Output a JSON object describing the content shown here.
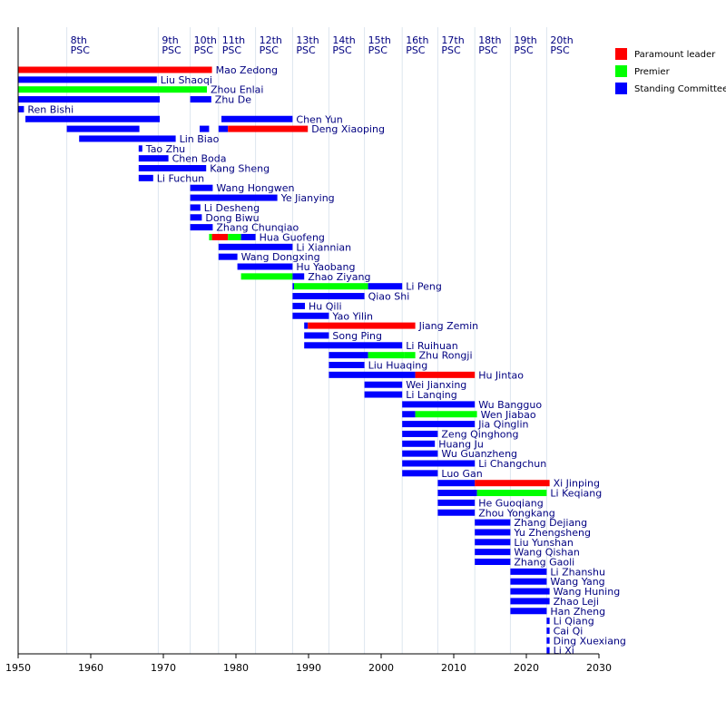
{
  "chart_data": {
    "type": "bar",
    "subtype": "timeline",
    "xlim": [
      1950,
      2030
    ],
    "x_ticks": [
      1950,
      1960,
      1970,
      1980,
      1990,
      2000,
      2010,
      2020,
      2030
    ],
    "grid": true,
    "legend_position": "top-right",
    "legend": [
      {
        "key": "paramount",
        "label": "Paramount leader",
        "color": "#ff0000"
      },
      {
        "key": "premier",
        "label": "Premier",
        "color": "#00ff00"
      },
      {
        "key": "standing",
        "label": "Standing Committee",
        "color": "#0000ff"
      }
    ],
    "congresses": [
      {
        "label": "8th",
        "sub": "PSC",
        "start": 1956.7
      },
      {
        "label": "9th",
        "sub": "PSC",
        "start": 1969.3
      },
      {
        "label": "10th",
        "sub": "PSC",
        "start": 1973.7
      },
      {
        "label": "11th",
        "sub": "PSC",
        "start": 1977.6
      },
      {
        "label": "12th",
        "sub": "PSC",
        "start": 1982.7
      },
      {
        "label": "13th",
        "sub": "PSC",
        "start": 1987.8
      },
      {
        "label": "14th",
        "sub": "PSC",
        "start": 1992.8
      },
      {
        "label": "15th",
        "sub": "PSC",
        "start": 1997.7
      },
      {
        "label": "16th",
        "sub": "PSC",
        "start": 2002.9
      },
      {
        "label": "17th",
        "sub": "PSC",
        "start": 2007.8
      },
      {
        "label": "18th",
        "sub": "PSC",
        "start": 2012.9
      },
      {
        "label": "19th",
        "sub": "PSC",
        "start": 2017.8
      },
      {
        "label": "20th",
        "sub": "PSC",
        "start": 2022.8
      }
    ],
    "members": [
      {
        "name": "Mao Zedong",
        "segments": [
          [
            1950,
            1976.7,
            "paramount"
          ]
        ]
      },
      {
        "name": "Liu Shaoqi",
        "segments": [
          [
            1950,
            1969.1,
            "standing"
          ]
        ]
      },
      {
        "name": "Zhou Enlai",
        "segments": [
          [
            1950,
            1976.0,
            "premier"
          ]
        ]
      },
      {
        "name": "Zhu De",
        "segments": [
          [
            1950,
            1969.5,
            "standing"
          ],
          [
            1973.7,
            1976.6,
            "standing"
          ]
        ]
      },
      {
        "name": "Ren Bishi",
        "segments": [
          [
            1950,
            1950.8,
            "standing"
          ]
        ]
      },
      {
        "name": "Chen Yun",
        "segments": [
          [
            1951,
            1969.5,
            "standing"
          ],
          [
            1978.0,
            1987.8,
            "standing"
          ]
        ]
      },
      {
        "name": "Deng Xiaoping",
        "segments": [
          [
            1956.7,
            1966.7,
            "standing"
          ],
          [
            1975.0,
            1976.3,
            "standing"
          ],
          [
            1977.6,
            1978.9,
            "standing"
          ],
          [
            1978.9,
            1989.9,
            "paramount"
          ]
        ]
      },
      {
        "name": "Lin Biao",
        "segments": [
          [
            1958.4,
            1971.7,
            "standing"
          ]
        ]
      },
      {
        "name": "Tao Zhu",
        "segments": [
          [
            1966.6,
            1967.1,
            "standing"
          ]
        ]
      },
      {
        "name": "Chen Boda",
        "segments": [
          [
            1966.6,
            1970.7,
            "standing"
          ]
        ]
      },
      {
        "name": "Kang Sheng",
        "segments": [
          [
            1966.6,
            1975.9,
            "standing"
          ]
        ]
      },
      {
        "name": "Li Fuchun",
        "segments": [
          [
            1966.6,
            1968.6,
            "standing"
          ]
        ]
      },
      {
        "name": "Wang Hongwen",
        "segments": [
          [
            1973.7,
            1976.8,
            "standing"
          ]
        ]
      },
      {
        "name": "Ye Jianying",
        "segments": [
          [
            1973.7,
            1985.7,
            "standing"
          ]
        ]
      },
      {
        "name": "Li Desheng",
        "segments": [
          [
            1973.7,
            1975.1,
            "standing"
          ]
        ]
      },
      {
        "name": "Dong Biwu",
        "segments": [
          [
            1973.7,
            1975.3,
            "standing"
          ]
        ]
      },
      {
        "name": "Zhang Chunqiao",
        "segments": [
          [
            1973.7,
            1976.8,
            "standing"
          ]
        ]
      },
      {
        "name": "Hua Guofeng",
        "segments": [
          [
            1976.3,
            1976.7,
            "premier"
          ],
          [
            1976.7,
            1978.9,
            "paramount"
          ],
          [
            1978.9,
            1980.7,
            "premier"
          ],
          [
            1980.7,
            1982.7,
            "standing"
          ]
        ]
      },
      {
        "name": "Li Xiannian",
        "segments": [
          [
            1977.6,
            1987.8,
            "standing"
          ]
        ]
      },
      {
        "name": "Wang Dongxing",
        "segments": [
          [
            1977.6,
            1980.2,
            "standing"
          ]
        ]
      },
      {
        "name": "Hu Yaobang",
        "segments": [
          [
            1980.2,
            1987.8,
            "standing"
          ]
        ]
      },
      {
        "name": "Zhao Ziyang",
        "segments": [
          [
            1980.7,
            1987.8,
            "premier"
          ],
          [
            1987.8,
            1989.4,
            "standing"
          ]
        ]
      },
      {
        "name": "Li Peng",
        "segments": [
          [
            1987.8,
            1988.0,
            "standing"
          ],
          [
            1988.0,
            1998.2,
            "premier"
          ],
          [
            1998.2,
            2002.9,
            "standing"
          ]
        ]
      },
      {
        "name": "Qiao Shi",
        "segments": [
          [
            1987.8,
            1997.7,
            "standing"
          ]
        ]
      },
      {
        "name": "Hu Qili",
        "segments": [
          [
            1987.8,
            1989.5,
            "standing"
          ]
        ]
      },
      {
        "name": "Yao Yilin",
        "segments": [
          [
            1987.8,
            1992.8,
            "standing"
          ]
        ]
      },
      {
        "name": "Jiang Zemin",
        "segments": [
          [
            1989.4,
            1989.9,
            "standing"
          ],
          [
            1989.9,
            2004.7,
            "paramount"
          ]
        ]
      },
      {
        "name": "Song Ping",
        "segments": [
          [
            1989.4,
            1992.8,
            "standing"
          ]
        ]
      },
      {
        "name": "Li Ruihuan",
        "segments": [
          [
            1989.4,
            2002.9,
            "standing"
          ]
        ]
      },
      {
        "name": "Zhu Rongji",
        "segments": [
          [
            1992.8,
            1998.2,
            "standing"
          ],
          [
            1998.2,
            2003.2,
            "premier"
          ],
          [
            2003.2,
            2004.7,
            "premier"
          ]
        ]
      },
      {
        "name": "Liu Huaqing",
        "segments": [
          [
            1992.8,
            1997.7,
            "standing"
          ]
        ]
      },
      {
        "name": "Hu Jintao",
        "segments": [
          [
            1992.8,
            2004.7,
            "standing"
          ],
          [
            2004.7,
            2012.9,
            "paramount"
          ]
        ]
      },
      {
        "name": "Wei Jianxing",
        "segments": [
          [
            1997.7,
            2002.9,
            "standing"
          ]
        ]
      },
      {
        "name": "Li Lanqing",
        "segments": [
          [
            1997.7,
            2002.9,
            "standing"
          ]
        ]
      },
      {
        "name": "Wu Bangguo",
        "segments": [
          [
            2002.9,
            2012.9,
            "standing"
          ]
        ]
      },
      {
        "name": "Wen Jiabao",
        "segments": [
          [
            2002.9,
            2004.7,
            "standing"
          ],
          [
            2004.7,
            2013.2,
            "premier"
          ]
        ]
      },
      {
        "name": "Jia Qinglin",
        "segments": [
          [
            2002.9,
            2012.9,
            "standing"
          ]
        ]
      },
      {
        "name": "Zeng Qinghong",
        "segments": [
          [
            2002.9,
            2007.8,
            "standing"
          ]
        ]
      },
      {
        "name": "Huang Ju",
        "segments": [
          [
            2002.9,
            2007.4,
            "standing"
          ]
        ]
      },
      {
        "name": "Wu Guanzheng",
        "segments": [
          [
            2002.9,
            2007.8,
            "standing"
          ]
        ]
      },
      {
        "name": "Li Changchun",
        "segments": [
          [
            2002.9,
            2012.9,
            "standing"
          ]
        ]
      },
      {
        "name": "Luo Gan",
        "segments": [
          [
            2002.9,
            2007.8,
            "standing"
          ]
        ]
      },
      {
        "name": "Xi Jinping",
        "segments": [
          [
            2007.8,
            2012.9,
            "standing"
          ],
          [
            2012.9,
            2023.2,
            "paramount"
          ]
        ]
      },
      {
        "name": "Li Keqiang",
        "segments": [
          [
            2007.8,
            2013.2,
            "standing"
          ],
          [
            2013.2,
            2022.8,
            "premier"
          ]
        ]
      },
      {
        "name": "He Guoqiang",
        "segments": [
          [
            2007.8,
            2012.9,
            "standing"
          ]
        ]
      },
      {
        "name": "Zhou Yongkang",
        "segments": [
          [
            2007.8,
            2012.9,
            "standing"
          ]
        ]
      },
      {
        "name": "Zhang Dejiang",
        "segments": [
          [
            2012.9,
            2017.8,
            "standing"
          ]
        ]
      },
      {
        "name": "Yu Zhengsheng",
        "segments": [
          [
            2012.9,
            2017.8,
            "standing"
          ]
        ]
      },
      {
        "name": "Liu Yunshan",
        "segments": [
          [
            2012.9,
            2017.8,
            "standing"
          ]
        ]
      },
      {
        "name": "Wang Qishan",
        "segments": [
          [
            2012.9,
            2017.8,
            "standing"
          ]
        ]
      },
      {
        "name": "Zhang Gaoli",
        "segments": [
          [
            2012.9,
            2017.8,
            "standing"
          ]
        ]
      },
      {
        "name": "Li Zhanshu",
        "segments": [
          [
            2017.8,
            2022.8,
            "standing"
          ]
        ]
      },
      {
        "name": "Wang Yang",
        "segments": [
          [
            2017.8,
            2022.8,
            "standing"
          ]
        ]
      },
      {
        "name": "Wang Huning",
        "segments": [
          [
            2017.8,
            2023.2,
            "standing"
          ]
        ]
      },
      {
        "name": "Zhao Leji",
        "segments": [
          [
            2017.8,
            2023.2,
            "standing"
          ]
        ]
      },
      {
        "name": "Han Zheng",
        "segments": [
          [
            2017.8,
            2022.8,
            "standing"
          ]
        ]
      },
      {
        "name": "Li Qiang",
        "segments": [
          [
            2022.8,
            2023.2,
            "standing"
          ]
        ]
      },
      {
        "name": "Cai Qi",
        "segments": [
          [
            2022.8,
            2023.2,
            "standing"
          ]
        ]
      },
      {
        "name": "Ding Xuexiang",
        "segments": [
          [
            2022.8,
            2023.2,
            "standing"
          ]
        ]
      },
      {
        "name": "Li Xi",
        "segments": [
          [
            2022.8,
            2023.2,
            "standing"
          ]
        ]
      }
    ]
  }
}
